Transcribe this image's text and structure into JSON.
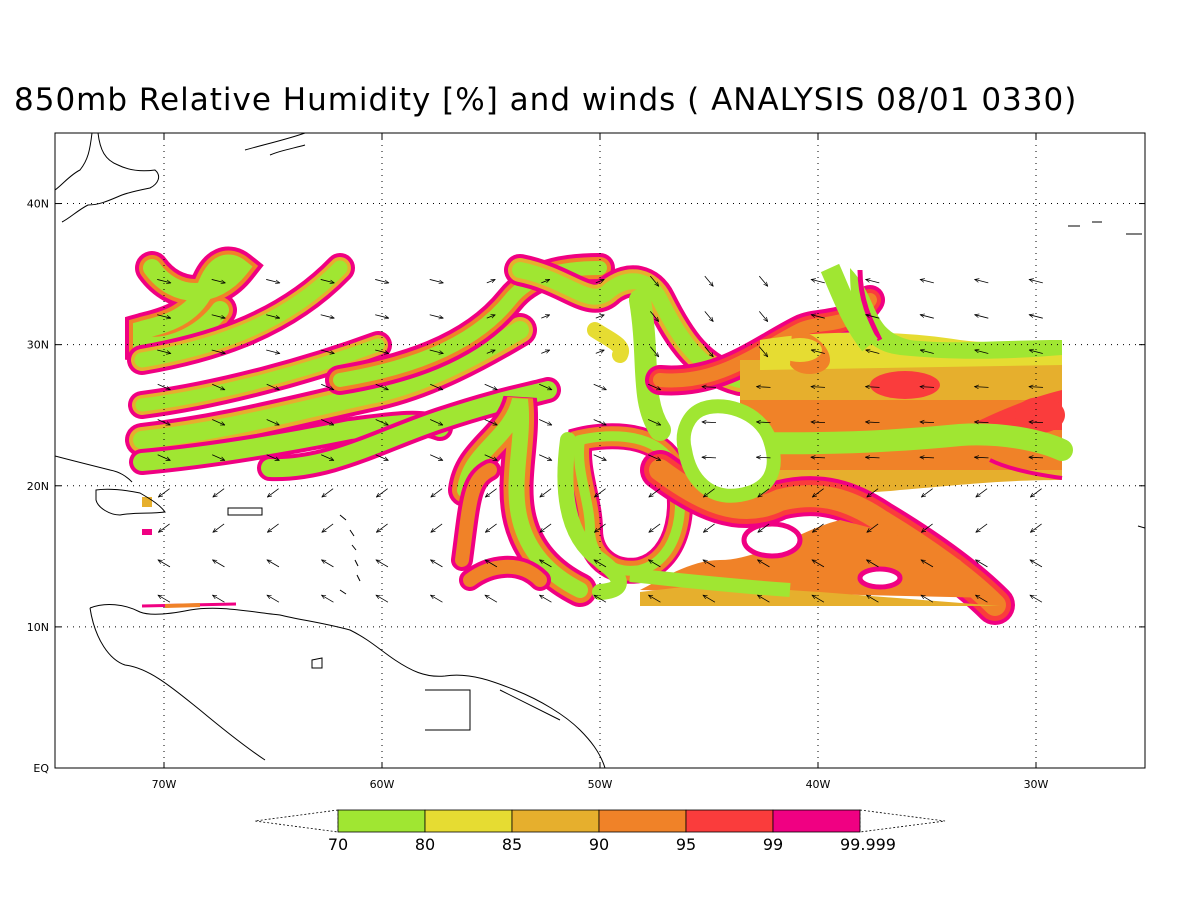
{
  "title": "850mb Relative Humidity [%] and winds ( ANALYSIS 08/01 0330)",
  "map": {
    "lon_range": [
      -75,
      -25
    ],
    "lat_range": [
      0,
      45
    ],
    "lon_ticks": [
      {
        "value": -70,
        "label": "70W"
      },
      {
        "value": -60,
        "label": "60W"
      },
      {
        "value": -50,
        "label": "50W"
      },
      {
        "value": -40,
        "label": "40W"
      },
      {
        "value": -30,
        "label": "30W"
      }
    ],
    "lat_ticks": [
      {
        "value": 0,
        "label": "EQ"
      },
      {
        "value": 10,
        "label": "10N"
      },
      {
        "value": 20,
        "label": "20N"
      },
      {
        "value": 30,
        "label": "30N"
      },
      {
        "value": 40,
        "label": "40N"
      }
    ],
    "grid": true
  },
  "colorbar": {
    "labels": [
      "70",
      "80",
      "85",
      "90",
      "95",
      "99",
      "99.999"
    ],
    "colors": [
      "#a0e632",
      "#e6dc32",
      "#e6af2d",
      "#f08228",
      "#fa3c3c",
      "#f00082"
    ]
  },
  "colors": {
    "rh_70": "#a0e632",
    "rh_80": "#e6dc32",
    "rh_85": "#e6af2d",
    "rh_90": "#f08228",
    "rh_95": "#fa3c3c",
    "rh_99": "#f00082"
  },
  "icons": [
    "wind-arrow-icon"
  ]
}
